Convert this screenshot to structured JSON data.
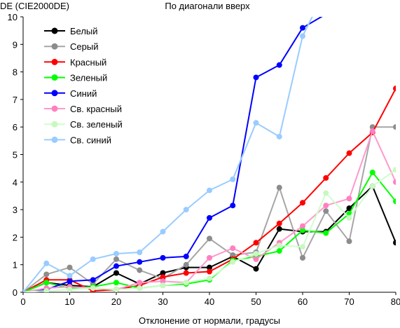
{
  "chart_data": {
    "type": "line",
    "title": "По диагонали вверх",
    "ylabel": "DE (CIE2000DE)",
    "xlabel": "Отклонение от нормали, градусы",
    "xlim": [
      0,
      80
    ],
    "ylim": [
      0,
      10
    ],
    "x_ticks": [
      "0",
      "10",
      "20",
      "30",
      "40",
      "50",
      "60",
      "70",
      "80"
    ],
    "y_ticks": [
      "0",
      "1",
      "2",
      "3",
      "4",
      "5",
      "6",
      "7",
      "8",
      "9",
      "10"
    ],
    "grid": false,
    "legend_position": "top-left",
    "x": [
      0,
      5,
      10,
      15,
      20,
      25,
      30,
      35,
      40,
      45,
      50,
      55,
      60,
      65,
      70,
      75,
      80
    ],
    "series": [
      {
        "name": "Белый",
        "color": "#000000",
        "marker_color": "#000000",
        "values": [
          0.0,
          0.35,
          0.25,
          0.2,
          0.7,
          0.3,
          0.7,
          0.9,
          0.9,
          1.3,
          0.85,
          2.3,
          2.2,
          2.2,
          3.05,
          3.85,
          1.8
        ]
      },
      {
        "name": "Серый",
        "color": "#a6a6a6",
        "marker_color": "#8c8c8c",
        "values": [
          0.0,
          0.65,
          0.9,
          0.3,
          1.2,
          0.8,
          0.5,
          1.0,
          1.95,
          1.35,
          1.45,
          3.8,
          1.25,
          2.95,
          1.85,
          6.0,
          6.0
        ]
      },
      {
        "name": "Красный",
        "color": "#ff0000",
        "marker_color": "#ff0000",
        "values": [
          0.0,
          0.45,
          0.45,
          0.05,
          0.1,
          0.25,
          0.55,
          0.7,
          0.75,
          1.2,
          1.8,
          2.5,
          3.25,
          4.15,
          5.05,
          5.8,
          7.4
        ]
      },
      {
        "name": "Зеленый",
        "color": "#00ff00",
        "marker_color": "#00ff00",
        "values": [
          0.0,
          0.35,
          0.15,
          0.2,
          0.35,
          0.15,
          0.25,
          0.3,
          0.45,
          1.15,
          1.3,
          1.5,
          2.25,
          2.15,
          2.85,
          4.35,
          3.3
        ]
      },
      {
        "name": "Синий",
        "color": "#0000ff",
        "marker_color": "#0000ff",
        "values": [
          0.0,
          0.1,
          0.4,
          0.45,
          0.95,
          1.1,
          1.25,
          1.3,
          2.7,
          3.15,
          7.8,
          8.25,
          9.6,
          10.1,
          null,
          null,
          null
        ]
      },
      {
        "name": "Св. красный",
        "color": "#ff99cc",
        "marker_color": "#ff80c0",
        "values": [
          0.0,
          0.15,
          0.2,
          0.15,
          0.1,
          0.35,
          0.4,
          0.35,
          1.25,
          1.6,
          1.2,
          1.8,
          2.4,
          3.15,
          3.4,
          5.85,
          4.0
        ]
      },
      {
        "name": "Св. зеленый",
        "color": "#ccffcc",
        "marker_color": "#c8f8c0",
        "values": [
          0.0,
          0.05,
          0.1,
          0.15,
          0.1,
          0.15,
          0.25,
          0.35,
          0.5,
          1.1,
          1.4,
          1.7,
          1.65,
          3.6,
          2.7,
          3.85,
          4.45
        ]
      },
      {
        "name": "Св. синий",
        "color": "#99ccff",
        "marker_color": "#99ccff",
        "values": [
          0.0,
          1.05,
          0.6,
          1.2,
          1.4,
          1.45,
          2.2,
          3.0,
          3.7,
          4.1,
          6.15,
          5.65,
          9.3,
          11.0,
          null,
          null,
          null
        ]
      }
    ]
  }
}
